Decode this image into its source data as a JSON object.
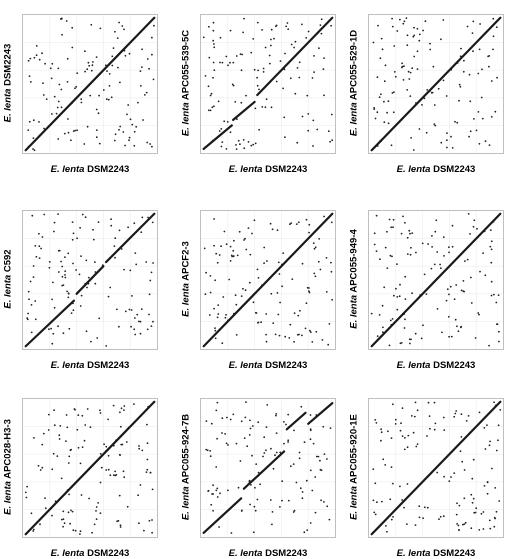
{
  "chart_data": [
    {
      "type": "scatter",
      "panel": "dsm2243",
      "xlabel": {
        "species": "E. lenta",
        "strain": "DSM2243"
      },
      "ylabel": {
        "species": "E. lenta",
        "strain": "DSM2243"
      },
      "xlim": [
        0,
        1
      ],
      "ylim": [
        0,
        1
      ],
      "diagonal": [
        {
          "x": [
            0.02,
            0.98
          ],
          "y": [
            0.02,
            0.98
          ]
        }
      ],
      "noise_seed": 11
    },
    {
      "type": "scatter",
      "panel": "apc055-539-5c",
      "xlabel": {
        "species": "E. lenta",
        "strain": "DSM2243"
      },
      "ylabel": {
        "species": "E. lenta",
        "strain": "APC055-539-5C"
      },
      "xlim": [
        0,
        1
      ],
      "ylim": [
        0,
        1
      ],
      "diagonal": [
        {
          "x": [
            0.02,
            0.23
          ],
          "y": [
            0.03,
            0.2
          ]
        },
        {
          "x": [
            0.24,
            0.4
          ],
          "y": [
            0.24,
            0.37
          ]
        },
        {
          "x": [
            0.42,
            0.98
          ],
          "y": [
            0.42,
            0.98
          ]
        }
      ],
      "noise_seed": 23
    },
    {
      "type": "scatter",
      "panel": "apc055-529-1d",
      "xlabel": {
        "species": "E. lenta",
        "strain": "DSM2243"
      },
      "ylabel": {
        "species": "E. lenta",
        "strain": "APC055-529-1D"
      },
      "xlim": [
        0,
        1
      ],
      "ylim": [
        0,
        1
      ],
      "diagonal": [
        {
          "x": [
            0.02,
            0.98
          ],
          "y": [
            0.02,
            0.98
          ]
        }
      ],
      "noise_seed": 37
    },
    {
      "type": "scatter",
      "panel": "c592",
      "xlabel": {
        "species": "E. lenta",
        "strain": "DSM2243"
      },
      "ylabel": {
        "species": "E. lenta",
        "strain": "C592"
      },
      "xlim": [
        0,
        1
      ],
      "ylim": [
        0,
        1
      ],
      "diagonal": [
        {
          "x": [
            0.02,
            0.38
          ],
          "y": [
            0.02,
            0.35
          ]
        },
        {
          "x": [
            0.4,
            0.6
          ],
          "y": [
            0.4,
            0.6
          ]
        },
        {
          "x": [
            0.62,
            0.98
          ],
          "y": [
            0.63,
            0.98
          ]
        }
      ],
      "noise_seed": 41
    },
    {
      "type": "scatter",
      "panel": "apcf2-3",
      "xlabel": {
        "species": "E. lenta",
        "strain": "DSM2243"
      },
      "ylabel": {
        "species": "E. lenta",
        "strain": "APCF2-3"
      },
      "xlim": [
        0,
        1
      ],
      "ylim": [
        0,
        1
      ],
      "diagonal": [
        {
          "x": [
            0.02,
            0.98
          ],
          "y": [
            0.02,
            0.98
          ]
        }
      ],
      "noise_seed": 53
    },
    {
      "type": "scatter",
      "panel": "apc055-949-4",
      "xlabel": {
        "species": "E. lenta",
        "strain": "DSM2243"
      },
      "ylabel": {
        "species": "E. lenta",
        "strain": "APC055-949-4"
      },
      "xlim": [
        0,
        1
      ],
      "ylim": [
        0,
        1
      ],
      "diagonal": [
        {
          "x": [
            0.02,
            0.98
          ],
          "y": [
            0.02,
            0.98
          ]
        }
      ],
      "noise_seed": 67
    },
    {
      "type": "scatter",
      "panel": "apc028-h3-3",
      "xlabel": {
        "species": "E. lenta",
        "strain": "DSM2243"
      },
      "ylabel": {
        "species": "E. lenta",
        "strain": "APC028-H3-3"
      },
      "xlim": [
        0,
        1
      ],
      "ylim": [
        0,
        1
      ],
      "diagonal": [
        {
          "x": [
            0.02,
            0.98
          ],
          "y": [
            0.02,
            0.98
          ]
        }
      ],
      "noise_seed": 71
    },
    {
      "type": "scatter",
      "panel": "apc055-924-7b",
      "xlabel": {
        "species": "E. lenta",
        "strain": "DSM2243"
      },
      "ylabel": {
        "species": "E. lenta",
        "strain": "APC055-924-7B"
      },
      "xlim": [
        0,
        1
      ],
      "ylim": [
        0,
        1
      ],
      "diagonal": [
        {
          "x": [
            0.02,
            0.3
          ],
          "y": [
            0.03,
            0.28
          ]
        },
        {
          "x": [
            0.32,
            0.62
          ],
          "y": [
            0.35,
            0.62
          ]
        },
        {
          "x": [
            0.64,
            0.78
          ],
          "y": [
            0.78,
            0.9
          ]
        },
        {
          "x": [
            0.8,
            0.98
          ],
          "y": [
            0.82,
            0.97
          ]
        }
      ],
      "noise_seed": 89
    },
    {
      "type": "scatter",
      "panel": "apc055-920-1e",
      "xlabel": {
        "species": "E. lenta",
        "strain": "DSM2243"
      },
      "ylabel": {
        "species": "E. lenta",
        "strain": "APC055-920-1E"
      },
      "xlim": [
        0,
        1
      ],
      "ylim": [
        0,
        1
      ],
      "diagonal": [
        {
          "x": [
            0.02,
            0.98
          ],
          "y": [
            0.02,
            0.98
          ]
        }
      ],
      "noise_seed": 97
    }
  ]
}
